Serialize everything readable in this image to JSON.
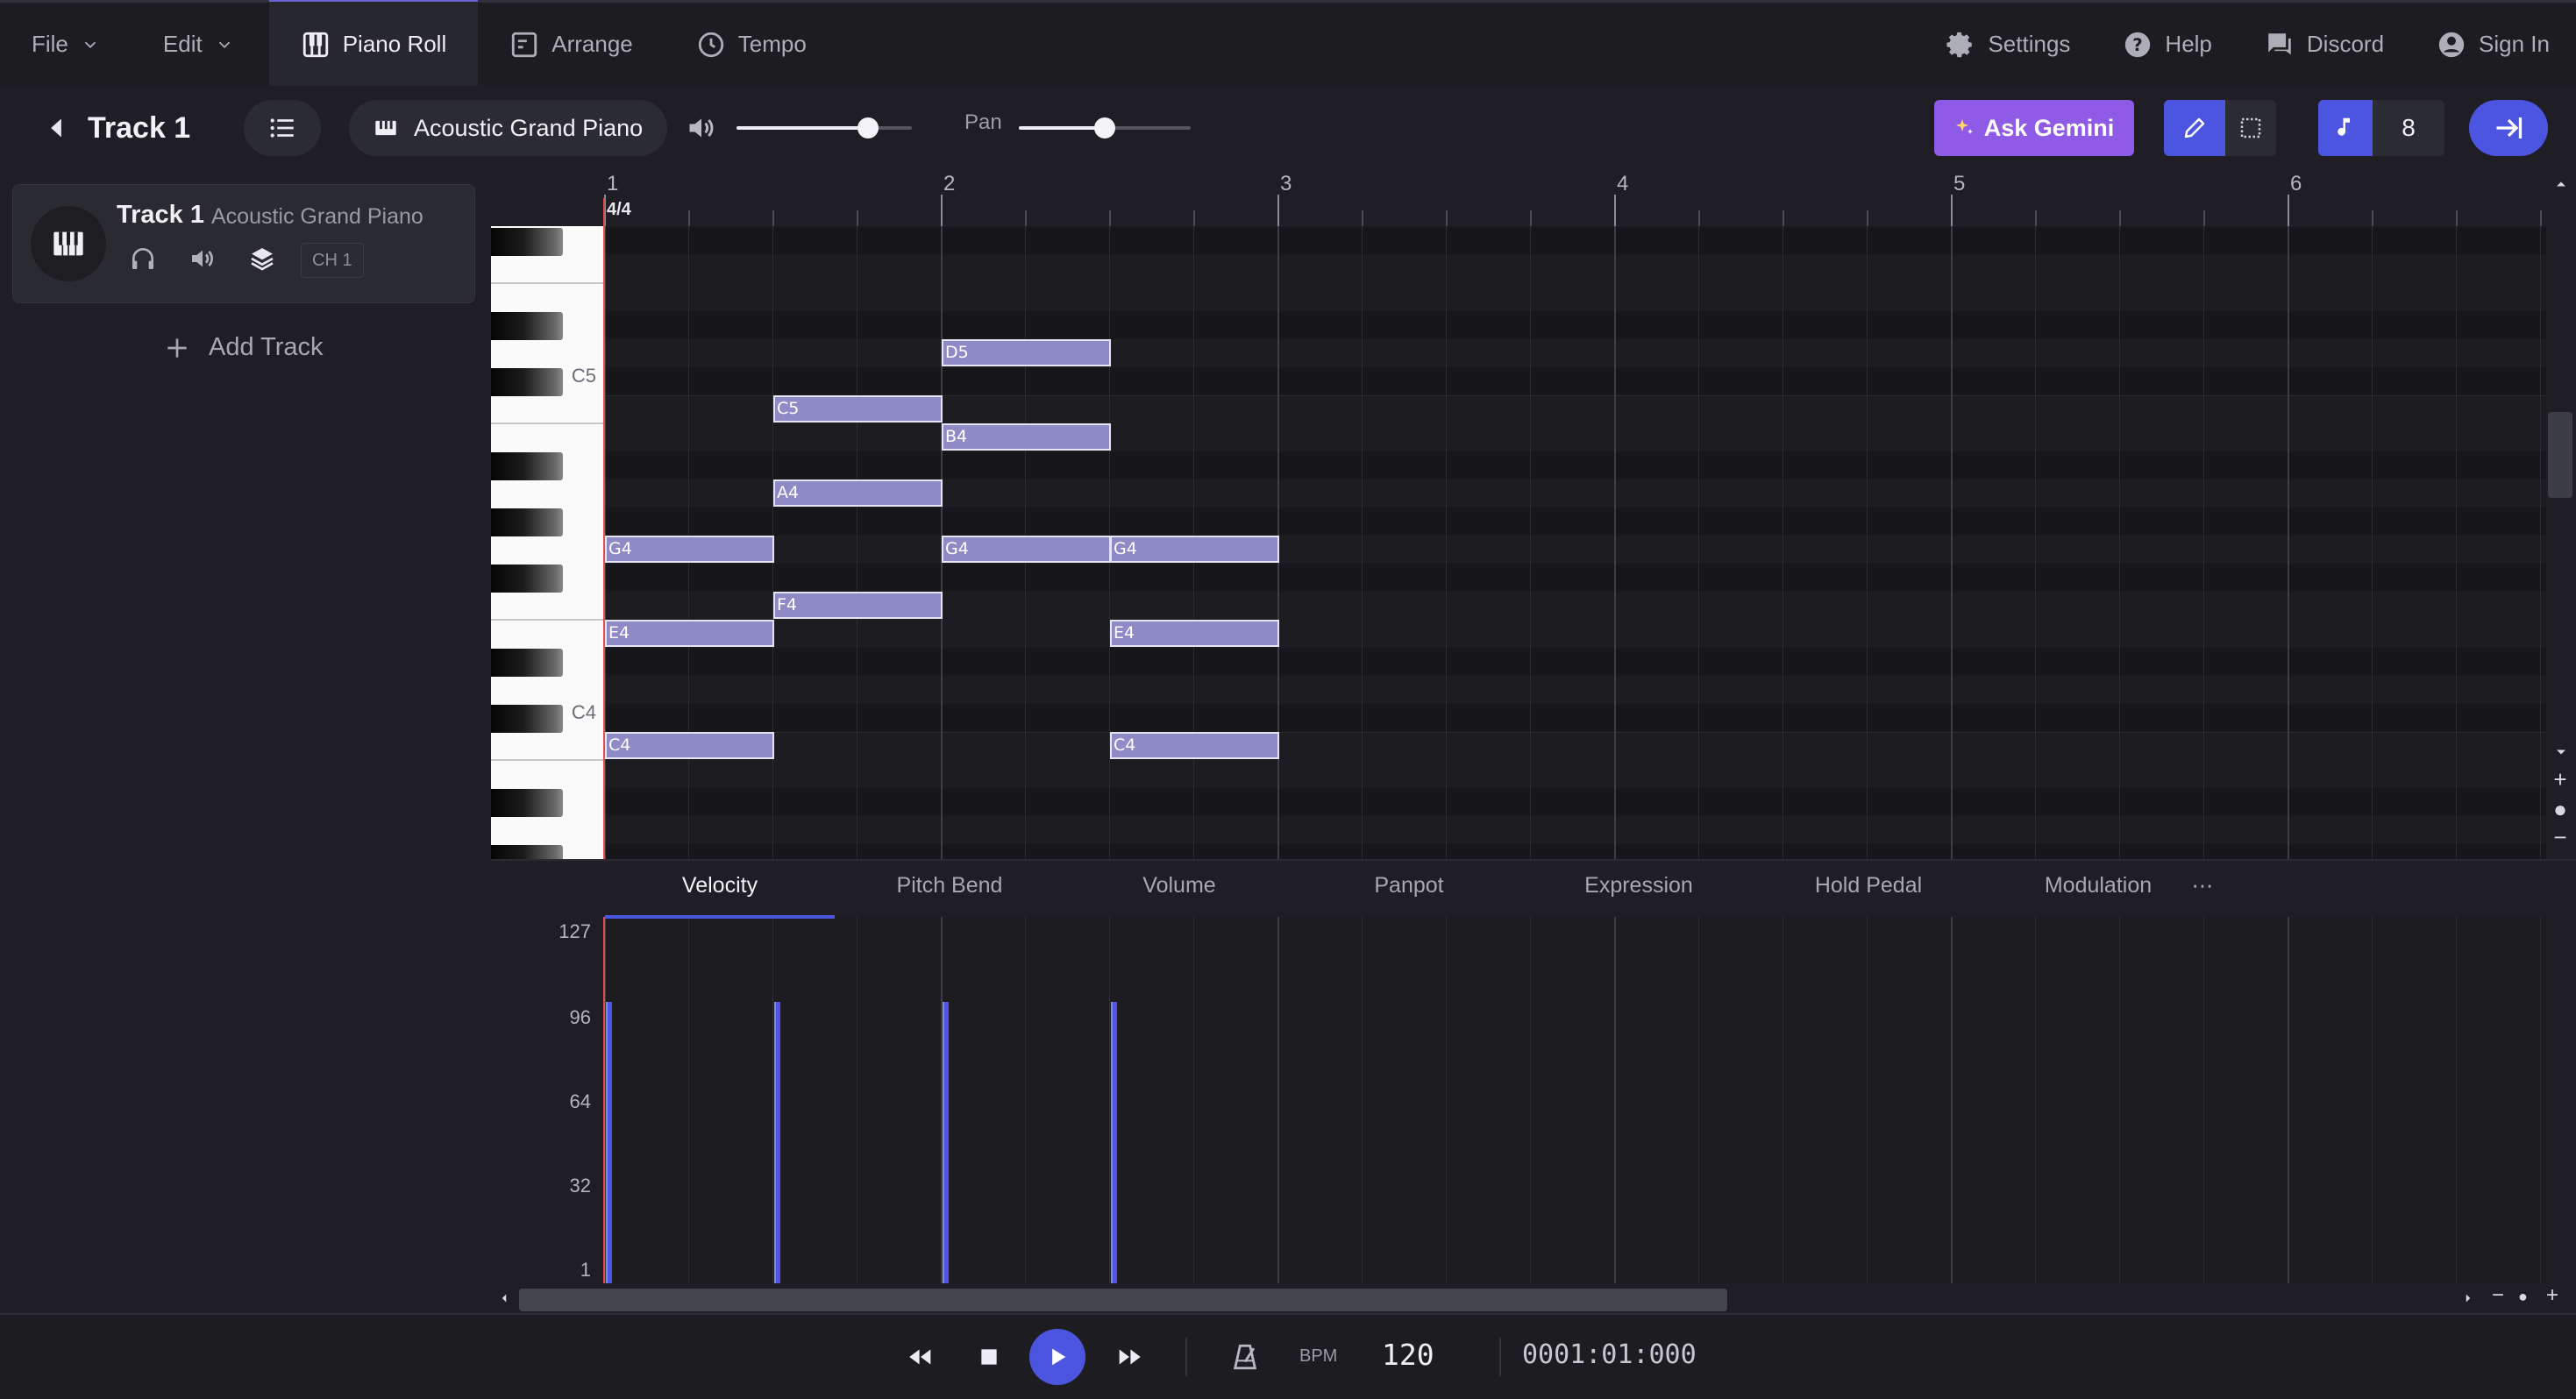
{
  "nav": {
    "file": "File",
    "edit": "Edit",
    "piano_roll": "Piano Roll",
    "arrange": "Arrange",
    "tempo": "Tempo",
    "settings": "Settings",
    "help": "Help",
    "discord": "Discord",
    "sign_in": "Sign In"
  },
  "toolbar": {
    "track_title": "Track 1",
    "instrument": "Acoustic Grand Piano",
    "volume_level": 0.75,
    "pan_label": "Pan",
    "pan_level": 0.5,
    "ask_gemini": "Ask Gemini",
    "quantize": "8"
  },
  "track_panel": {
    "track_name": "Track 1",
    "instrument": "Acoustic Grand Piano",
    "channel": "CH 1",
    "add_track": "Add Track"
  },
  "ruler": {
    "bars": [
      "1",
      "2",
      "3",
      "4",
      "5",
      "6"
    ],
    "time_signature": "4/4"
  },
  "keys": {
    "c5": "C5",
    "c4": "C4"
  },
  "notes": [
    {
      "pitch": "D5",
      "start": 1.0,
      "length": 0.5
    },
    {
      "pitch": "C5",
      "start": 0.5,
      "length": 0.5
    },
    {
      "pitch": "B4",
      "start": 1.0,
      "length": 0.5
    },
    {
      "pitch": "A4",
      "start": 0.5,
      "length": 0.5
    },
    {
      "pitch": "G4",
      "start": 0.0,
      "length": 0.5
    },
    {
      "pitch": "G4",
      "start": 1.0,
      "length": 0.5
    },
    {
      "pitch": "G4",
      "start": 1.5,
      "length": 0.5
    },
    {
      "pitch": "F4",
      "start": 0.5,
      "length": 0.5
    },
    {
      "pitch": "E4",
      "start": 0.0,
      "length": 0.5
    },
    {
      "pitch": "E4",
      "start": 1.5,
      "length": 0.5
    },
    {
      "pitch": "C4",
      "start": 0.0,
      "length": 0.5
    },
    {
      "pitch": "C4",
      "start": 1.5,
      "length": 0.5
    }
  ],
  "controller": {
    "tabs": [
      "Velocity",
      "Pitch Bend",
      "Volume",
      "Panpot",
      "Expression",
      "Hold Pedal",
      "Modulation"
    ],
    "more": "⋯",
    "ticks": [
      "127",
      "96",
      "64",
      "32",
      "1"
    ],
    "velocities": [
      {
        "start": 0.0,
        "value": 100
      },
      {
        "start": 0.5,
        "value": 100
      },
      {
        "start": 1.0,
        "value": 100
      },
      {
        "start": 1.5,
        "value": 100
      }
    ]
  },
  "transport": {
    "bpm_label": "BPM",
    "bpm": "120",
    "time": "0001:01:000"
  },
  "colors": {
    "accent": "#4c55e0",
    "gemini": "#8f5ae6",
    "note_fill": "#8d8ac6",
    "playhead": "#e64a4a"
  }
}
